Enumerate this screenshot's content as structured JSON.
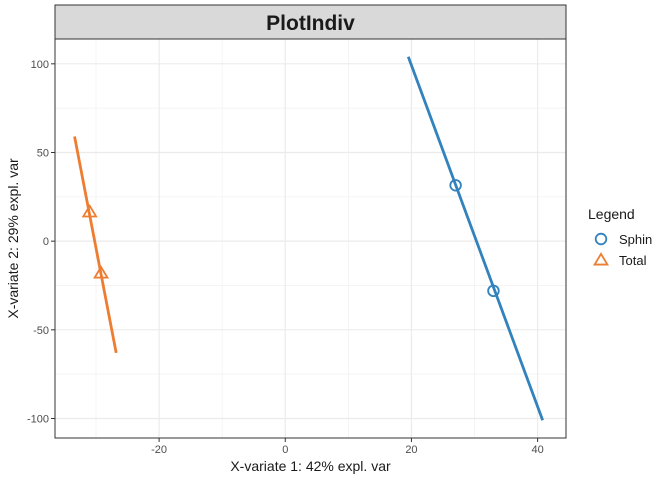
{
  "chart_data": {
    "type": "scatter",
    "title": "PlotIndiv",
    "xlabel": "X-variate 1: 42% expl. var",
    "ylabel": "X-variate 2: 29% expl. var",
    "xlim": [
      -36.5,
      44.5
    ],
    "ylim": [
      -111,
      114
    ],
    "xticks": [
      -20,
      0,
      20,
      40
    ],
    "yticks": [
      100,
      50,
      0,
      -50,
      -100
    ],
    "xtick_labels": [
      "-20",
      "0",
      "20",
      "40"
    ],
    "ytick_labels": [
      "100",
      "50",
      "0",
      "-50",
      "-100"
    ],
    "grid": true,
    "legend": {
      "title": "Legend",
      "position": "right"
    },
    "series": [
      {
        "name": "Sphin",
        "color": "#3182bd",
        "marker": "circle",
        "points": [
          {
            "x": 27.0,
            "y": 31.5
          },
          {
            "x": 33.0,
            "y": -28.0
          }
        ],
        "line": [
          {
            "x": 19.5,
            "y": 104.0
          },
          {
            "x": 40.8,
            "y": -101.0
          }
        ]
      },
      {
        "name": "Total",
        "color": "#ed7d31",
        "marker": "triangle",
        "points": [
          {
            "x": -31.0,
            "y": 16.5
          },
          {
            "x": -29.2,
            "y": -18.0
          }
        ],
        "line": [
          {
            "x": -33.4,
            "y": 59.0
          },
          {
            "x": -26.8,
            "y": -63.0
          }
        ]
      }
    ]
  }
}
